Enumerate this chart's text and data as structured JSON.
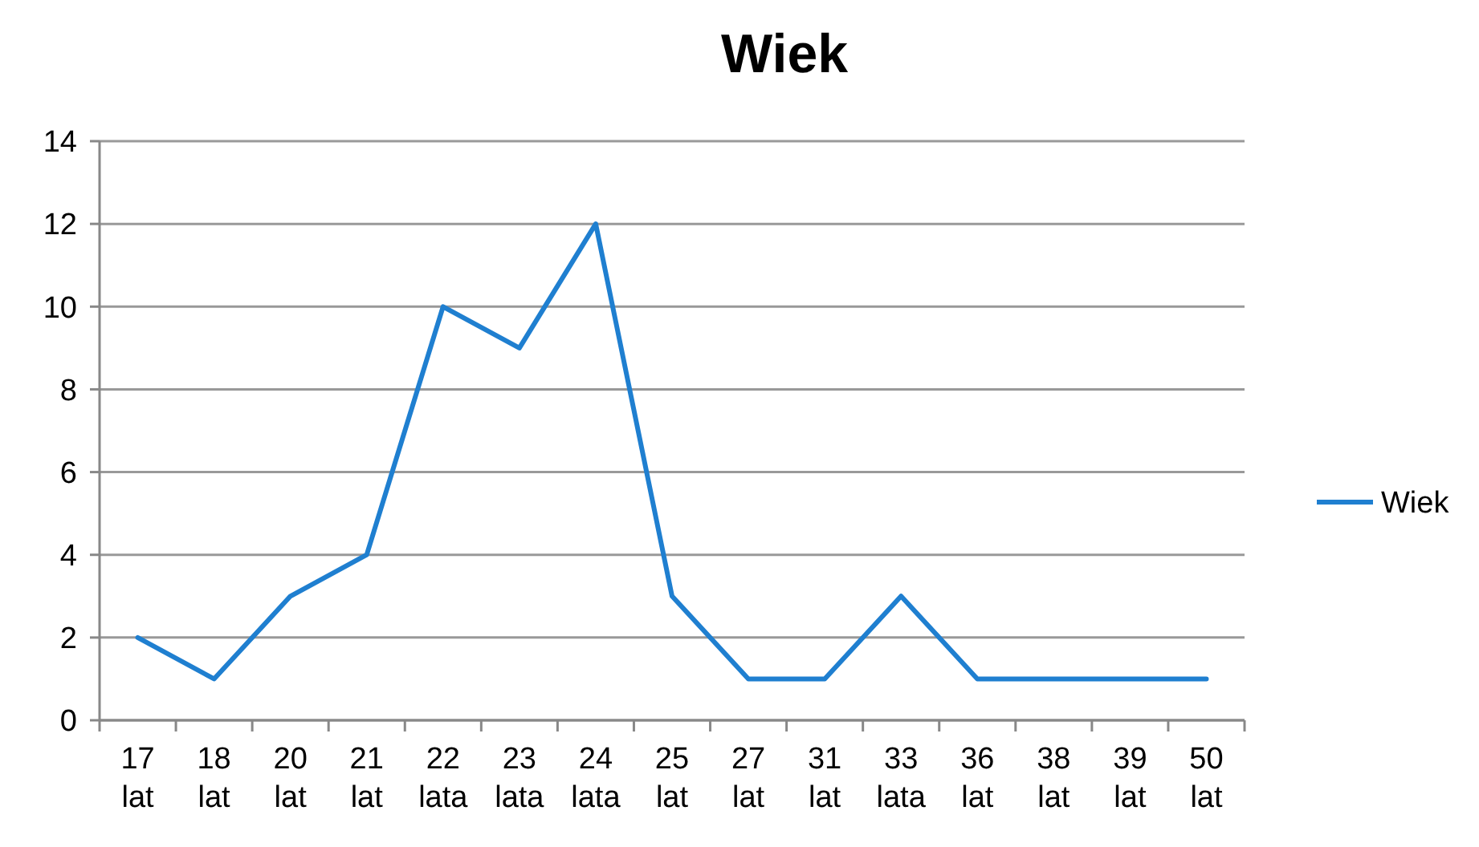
{
  "chart_data": {
    "type": "line",
    "title": "Wiek",
    "categories": [
      "17 lat",
      "18 lat",
      "20 lat",
      "21 lat",
      "22 lata",
      "23 lata",
      "24 lata",
      "25 lat",
      "27 lat",
      "31 lat",
      "33 lata",
      "36 lat",
      "38 lat",
      "39 lat",
      "50 lat"
    ],
    "series": [
      {
        "name": "Wiek",
        "color": "#1f7fd0",
        "values": [
          2,
          1,
          3,
          4,
          10,
          9,
          12,
          3,
          1,
          1,
          3,
          1,
          1,
          1,
          1
        ]
      }
    ],
    "ylim": [
      0,
      14
    ],
    "yticks": [
      0,
      2,
      4,
      6,
      8,
      10,
      12,
      14
    ],
    "grid": "y",
    "legend": "right",
    "marker": "none",
    "line_style": "solid"
  }
}
